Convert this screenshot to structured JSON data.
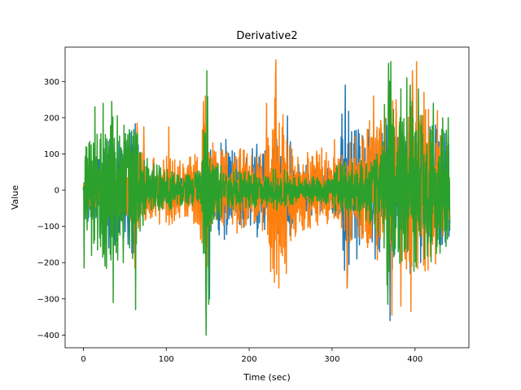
{
  "chart_data": {
    "type": "line",
    "title": "Derivative2",
    "xlabel": "Time (sec)",
    "ylabel": "Value",
    "xlim": [
      -22,
      465
    ],
    "ylim": [
      -435,
      395
    ],
    "x_ticks": [
      0,
      100,
      200,
      300,
      400
    ],
    "y_ticks": [
      -400,
      -300,
      -200,
      -100,
      0,
      100,
      200,
      300
    ],
    "x_tick_labels": [
      "0",
      "100",
      "200",
      "300",
      "400"
    ],
    "y_tick_labels": [
      "−400",
      "−300",
      "−200",
      "−100",
      "0",
      "100",
      "200",
      "300"
    ],
    "grid": false,
    "legend": "none",
    "x_range": [
      0,
      442
    ],
    "series": [
      {
        "color": "#1f77b4",
        "envelope": [
          [
            0,
            20
          ],
          [
            5,
            100
          ],
          [
            10,
            80
          ],
          [
            20,
            140
          ],
          [
            30,
            160
          ],
          [
            40,
            150
          ],
          [
            50,
            140
          ],
          [
            60,
            190
          ],
          [
            64,
            220
          ],
          [
            68,
            60
          ],
          [
            80,
            40
          ],
          [
            100,
            35
          ],
          [
            120,
            35
          ],
          [
            140,
            40
          ],
          [
            146,
            90
          ],
          [
            150,
            120
          ],
          [
            158,
            110
          ],
          [
            170,
            140
          ],
          [
            185,
            100
          ],
          [
            200,
            110
          ],
          [
            215,
            140
          ],
          [
            225,
            110
          ],
          [
            240,
            130
          ],
          [
            246,
            160
          ],
          [
            260,
            80
          ],
          [
            280,
            70
          ],
          [
            300,
            60
          ],
          [
            310,
            120
          ],
          [
            315,
            300
          ],
          [
            322,
            220
          ],
          [
            330,
            170
          ],
          [
            340,
            170
          ],
          [
            350,
            190
          ],
          [
            360,
            200
          ],
          [
            370,
            240
          ],
          [
            380,
            170
          ],
          [
            390,
            180
          ],
          [
            400,
            150
          ],
          [
            410,
            160
          ],
          [
            420,
            160
          ],
          [
            430,
            180
          ],
          [
            442,
            140
          ]
        ],
        "peaks": [
          [
            63,
            -250
          ],
          [
            64,
            145
          ],
          [
            148,
            -270
          ],
          [
            152,
            -300
          ],
          [
            172,
            140
          ],
          [
            209,
            95
          ],
          [
            233,
            140
          ],
          [
            246,
            205
          ],
          [
            312,
            210
          ],
          [
            316,
            290
          ],
          [
            318,
            -270
          ],
          [
            330,
            -190
          ],
          [
            352,
            -190
          ],
          [
            367,
            -275
          ],
          [
            370,
            -360
          ],
          [
            394,
            -230
          ],
          [
            407,
            -200
          ],
          [
            418,
            175
          ],
          [
            425,
            180
          ],
          [
            438,
            130
          ]
        ]
      },
      {
        "color": "#ff7f0e",
        "envelope": [
          [
            0,
            15
          ],
          [
            5,
            60
          ],
          [
            10,
            50
          ],
          [
            20,
            60
          ],
          [
            30,
            50
          ],
          [
            40,
            70
          ],
          [
            50,
            70
          ],
          [
            60,
            100
          ],
          [
            64,
            180
          ],
          [
            68,
            110
          ],
          [
            80,
            90
          ],
          [
            100,
            100
          ],
          [
            120,
            80
          ],
          [
            140,
            110
          ],
          [
            146,
            230
          ],
          [
            150,
            220
          ],
          [
            158,
            110
          ],
          [
            170,
            120
          ],
          [
            185,
            120
          ],
          [
            200,
            110
          ],
          [
            215,
            110
          ],
          [
            225,
            160
          ],
          [
            232,
            320
          ],
          [
            240,
            210
          ],
          [
            246,
            200
          ],
          [
            260,
            110
          ],
          [
            280,
            120
          ],
          [
            300,
            110
          ],
          [
            310,
            110
          ],
          [
            315,
            120
          ],
          [
            322,
            160
          ],
          [
            330,
            150
          ],
          [
            340,
            170
          ],
          [
            350,
            220
          ],
          [
            360,
            200
          ],
          [
            370,
            280
          ],
          [
            380,
            190
          ],
          [
            390,
            250
          ],
          [
            395,
            330
          ],
          [
            400,
            270
          ],
          [
            410,
            230
          ],
          [
            420,
            220
          ],
          [
            430,
            200
          ],
          [
            442,
            120
          ]
        ],
        "peaks": [
          [
            62,
            -215
          ],
          [
            65,
            185
          ],
          [
            73,
            175
          ],
          [
            103,
            175
          ],
          [
            145,
            245
          ],
          [
            147,
            260
          ],
          [
            221,
            240
          ],
          [
            232,
            360
          ],
          [
            226,
            -225
          ],
          [
            236,
            -270
          ],
          [
            245,
            -230
          ],
          [
            303,
            140
          ],
          [
            318,
            -270
          ],
          [
            350,
            260
          ],
          [
            359,
            175
          ],
          [
            368,
            290
          ],
          [
            372,
            -345
          ],
          [
            377,
            250
          ],
          [
            383,
            -320
          ],
          [
            397,
            330
          ],
          [
            402,
            355
          ],
          [
            395,
            -335
          ],
          [
            411,
            270
          ],
          [
            427,
            220
          ]
        ]
      },
      {
        "color": "#2ca02c",
        "envelope": [
          [
            0,
            20
          ],
          [
            3,
            150
          ],
          [
            8,
            140
          ],
          [
            12,
            180
          ],
          [
            20,
            200
          ],
          [
            26,
            220
          ],
          [
            32,
            210
          ],
          [
            38,
            230
          ],
          [
            45,
            200
          ],
          [
            52,
            170
          ],
          [
            58,
            190
          ],
          [
            63,
            210
          ],
          [
            68,
            120
          ],
          [
            80,
            80
          ],
          [
            100,
            60
          ],
          [
            120,
            40
          ],
          [
            140,
            60
          ],
          [
            146,
            200
          ],
          [
            149,
            330
          ],
          [
            152,
            160
          ],
          [
            160,
            90
          ],
          [
            180,
            60
          ],
          [
            200,
            50
          ],
          [
            220,
            50
          ],
          [
            240,
            70
          ],
          [
            246,
            60
          ],
          [
            260,
            40
          ],
          [
            280,
            40
          ],
          [
            300,
            40
          ],
          [
            310,
            100
          ],
          [
            320,
            90
          ],
          [
            330,
            70
          ],
          [
            340,
            100
          ],
          [
            350,
            110
          ],
          [
            360,
            150
          ],
          [
            365,
            290
          ],
          [
            370,
            340
          ],
          [
            375,
            200
          ],
          [
            385,
            220
          ],
          [
            395,
            250
          ],
          [
            405,
            230
          ],
          [
            415,
            230
          ],
          [
            425,
            220
          ],
          [
            435,
            200
          ],
          [
            442,
            120
          ]
        ],
        "peaks": [
          [
            1,
            -215
          ],
          [
            3,
            120
          ],
          [
            10,
            -180
          ],
          [
            14,
            230
          ],
          [
            17,
            -165
          ],
          [
            24,
            240
          ],
          [
            30,
            135
          ],
          [
            34,
            245
          ],
          [
            36,
            -310
          ],
          [
            48,
            -200
          ],
          [
            63,
            -330
          ],
          [
            149,
            330
          ],
          [
            148,
            -400
          ],
          [
            151,
            -315
          ],
          [
            368,
            350
          ],
          [
            371,
            355
          ],
          [
            367,
            -315
          ],
          [
            383,
            280
          ],
          [
            390,
            310
          ],
          [
            394,
            290
          ],
          [
            404,
            280
          ],
          [
            422,
            240
          ],
          [
            440,
            200
          ]
        ]
      }
    ]
  }
}
